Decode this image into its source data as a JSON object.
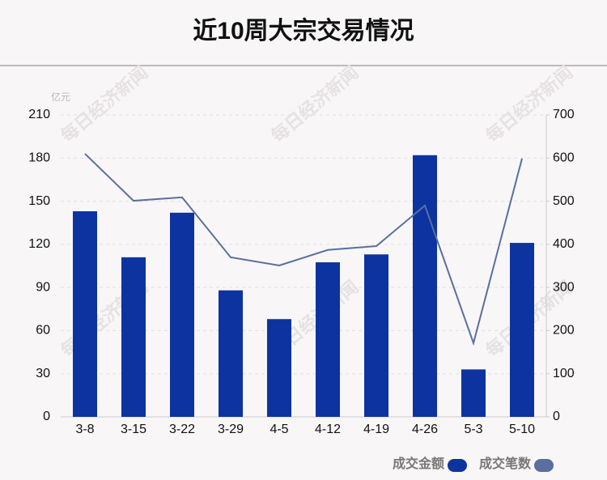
{
  "chart_data": {
    "type": "bar_line",
    "title": "近10周大宗交易情况",
    "y_unit": "亿元",
    "watermark": "每日经济新闻",
    "categories": [
      "3-8",
      "3-15",
      "3-22",
      "3-29",
      "4-5",
      "4-12",
      "4-19",
      "4-26",
      "5-3",
      "5-10"
    ],
    "series": [
      {
        "name": "成交金额",
        "type": "bar",
        "color": "#0d33a0",
        "values": [
          143,
          111,
          142,
          88,
          68,
          107.5,
          113,
          182,
          33,
          121
        ]
      },
      {
        "name": "成交笔数",
        "type": "line",
        "color": "#5a6f9f",
        "axis": "y2",
        "values": [
          610,
          501,
          509,
          370,
          351,
          387,
          396,
          490,
          171,
          599
        ]
      }
    ],
    "ylim": [
      0,
      210
    ],
    "yticks": [
      0,
      30,
      60,
      90,
      120,
      150,
      180,
      210
    ],
    "y2lim": [
      0,
      700
    ],
    "y2ticks": [
      0,
      100,
      200,
      300,
      400,
      500,
      600,
      700
    ],
    "grid": true
  }
}
